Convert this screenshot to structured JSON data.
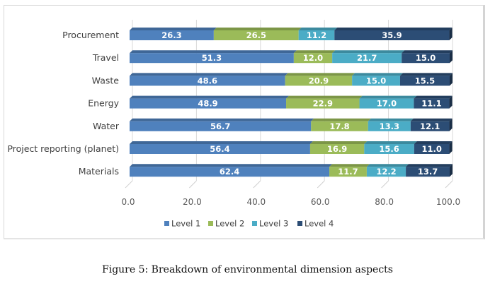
{
  "caption": "Figure 5: Breakdown of environmental dimension aspects",
  "chart_data": {
    "type": "bar",
    "orientation": "horizontal",
    "stacked": true,
    "title": "",
    "xlabel": "",
    "ylabel": "",
    "xlim": [
      0,
      100
    ],
    "x_ticks": [
      "0.0",
      "20.0",
      "40.0",
      "60.0",
      "80.0",
      "100.0"
    ],
    "grid": true,
    "legend_position": "bottom",
    "categories": [
      "Procurement",
      "Travel",
      "Waste",
      "Energy",
      "Water",
      "Project reporting (planet)",
      "Materials"
    ],
    "series": [
      {
        "name": "Level 1",
        "color": "#4f81bd",
        "values": [
          26.3,
          51.3,
          48.6,
          48.9,
          56.7,
          56.4,
          62.4
        ]
      },
      {
        "name": "Level 2",
        "color": "#9bbb59",
        "values": [
          26.5,
          12.0,
          20.9,
          22.9,
          17.8,
          16.9,
          11.7
        ]
      },
      {
        "name": "Level 3",
        "color": "#4bacc6",
        "values": [
          11.2,
          21.7,
          15.0,
          17.0,
          13.3,
          15.6,
          12.2
        ]
      },
      {
        "name": "Level 4",
        "color": "#2c4d75",
        "values": [
          35.9,
          15.0,
          15.5,
          11.1,
          12.1,
          11.0,
          13.7
        ]
      }
    ],
    "value_labels": [
      [
        "26.3",
        "26.5",
        "11.2",
        "35.9"
      ],
      [
        "51.3",
        "12.0",
        "21.7",
        "15.0"
      ],
      [
        "48.6",
        "20.9",
        "15.0",
        "15.5"
      ],
      [
        "48.9",
        "22.9",
        "17.0",
        "11.1"
      ],
      [
        "56.7",
        "17.8",
        "13.3",
        "12.1"
      ],
      [
        "56.4",
        "16.9",
        "15.6",
        "11.0"
      ],
      [
        "62.4",
        "11.7",
        "12.2",
        "13.7"
      ]
    ]
  }
}
